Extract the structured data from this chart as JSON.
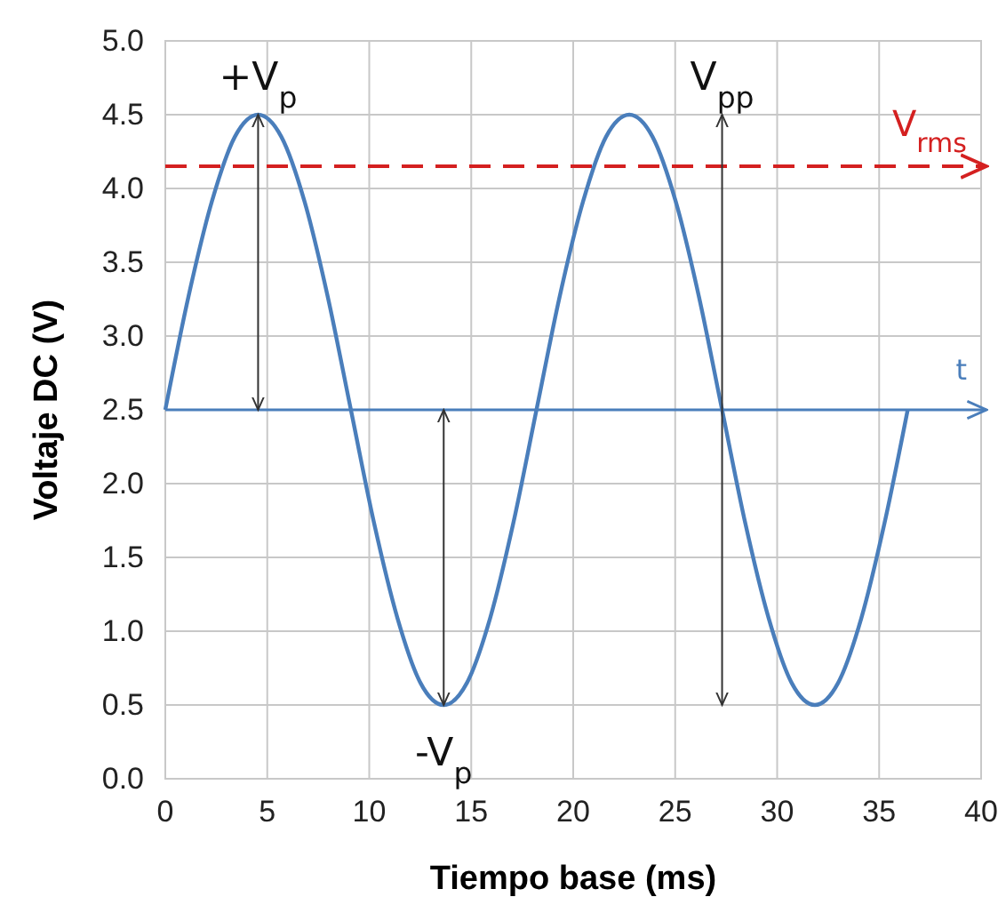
{
  "chart_data": {
    "type": "line",
    "xlabel": "Tiempo base (ms)",
    "ylabel": "Voltaje DC (V)",
    "xlim": [
      0,
      40
    ],
    "xticks": [
      0,
      5,
      10,
      15,
      20,
      25,
      30,
      35,
      40
    ],
    "ylim": [
      0,
      5
    ],
    "yticks": [
      {
        "value": 0,
        "label": "0.0"
      },
      0.5,
      {
        "value": 1,
        "label": "1.0"
      },
      1.5,
      {
        "value": 2,
        "label": "2.0"
      },
      2.5,
      {
        "value": 3,
        "label": "3.0"
      },
      3.5,
      {
        "value": 4,
        "label": "4.0"
      },
      4.5,
      {
        "value": 5,
        "label": "5.0"
      }
    ],
    "grid": true,
    "marker": "none",
    "line_style": "solid",
    "series": [
      {
        "color": "#4a7ebb",
        "x": [
          0,
          1.14,
          2.28,
          3.41,
          4.55,
          5.69,
          6.83,
          7.96,
          9.1,
          10.24,
          11.38,
          12.51,
          13.65,
          14.79,
          15.93,
          17.06,
          18.2,
          19.34,
          20.48,
          21.61,
          22.75,
          23.89,
          25.03,
          26.16,
          27.3,
          28.44,
          29.58,
          30.71,
          31.85,
          32.99,
          34.13,
          35.26,
          36.4
        ],
        "values": [
          2.5,
          3.27,
          3.91,
          4.35,
          4.5,
          4.35,
          3.91,
          3.27,
          2.5,
          1.73,
          1.09,
          0.65,
          0.5,
          0.65,
          1.09,
          1.73,
          2.5,
          3.27,
          3.91,
          4.35,
          4.5,
          4.35,
          3.91,
          3.27,
          2.5,
          1.73,
          1.09,
          0.65,
          0.5,
          0.65,
          1.09,
          1.73,
          2.5
        ]
      },
      {
        "type": "line",
        "color": "#333333",
        "x": [
          27.3,
          27.3
        ],
        "values": [
          0.5,
          4.5
        ]
      }
    ],
    "ref_lines": [
      {
        "axis": "y",
        "value": 2.5,
        "label": "t",
        "color": "#4a7ebb",
        "line_style": "solid"
      },
      {
        "axis": "y",
        "value": 4.15,
        "label": "V$_{rms}$",
        "color": "#d42020",
        "line_style": "dashed"
      }
    ],
    "annotations": [
      {
        "text": "+V$_{p}$",
        "x": 4.55,
        "y": 4.5
      },
      "V$_{pp}$",
      {
        "text": "-V$_{p}$",
        "x": 13.65,
        "y": 0.5
      }
    ]
  }
}
